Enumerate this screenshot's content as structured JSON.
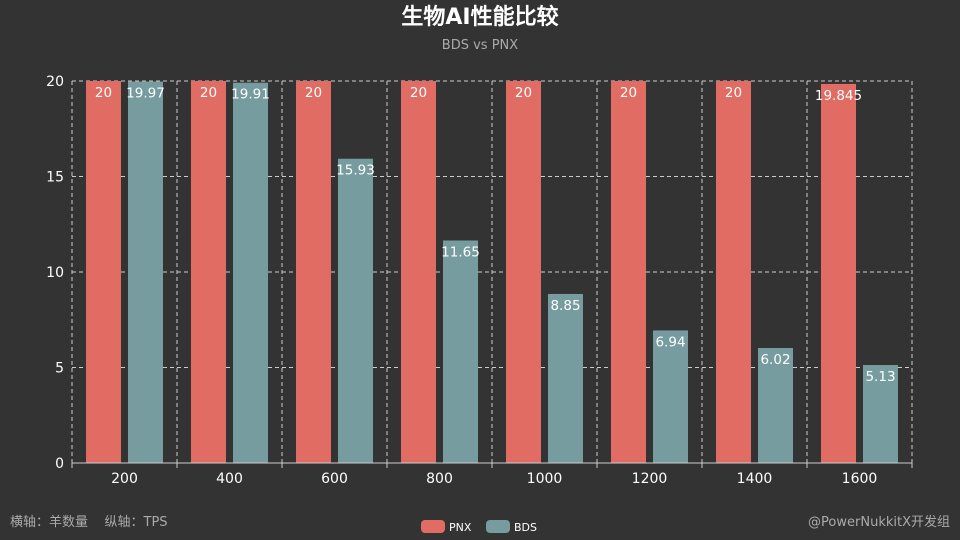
{
  "title": "生物AI性能比较",
  "subtitle": "BDS vs PNX",
  "footer_left": "横轴：羊数量    纵轴：TPS",
  "footer_right": "@PowerNukkitX开发组",
  "colors": {
    "PNX": "#e06c63",
    "BDS": "#769ca0",
    "background": "#333333",
    "grid": "#cccccc"
  },
  "chart_data": {
    "type": "bar",
    "categories": [
      "200",
      "400",
      "600",
      "800",
      "1000",
      "1200",
      "1400",
      "1600"
    ],
    "series": [
      {
        "name": "PNX",
        "values": [
          20,
          20,
          20,
          20,
          20,
          20,
          20,
          19.845
        ],
        "labels": [
          "20",
          "20",
          "20",
          "20",
          "20",
          "20",
          "20",
          "19.845"
        ]
      },
      {
        "name": "BDS",
        "values": [
          19.97,
          19.91,
          15.93,
          11.65,
          8.85,
          6.94,
          6.02,
          5.13
        ],
        "labels": [
          "19.97",
          "19.91",
          "15.93",
          "11.65",
          "8.85",
          "6.94",
          "6.02",
          "5.13"
        ]
      }
    ],
    "y_ticks": [
      "0",
      "5",
      "10",
      "15",
      "20"
    ],
    "ylim": [
      0,
      20
    ],
    "grid": true,
    "legend_position": "bottom-center",
    "xlabel": "",
    "ylabel": ""
  }
}
